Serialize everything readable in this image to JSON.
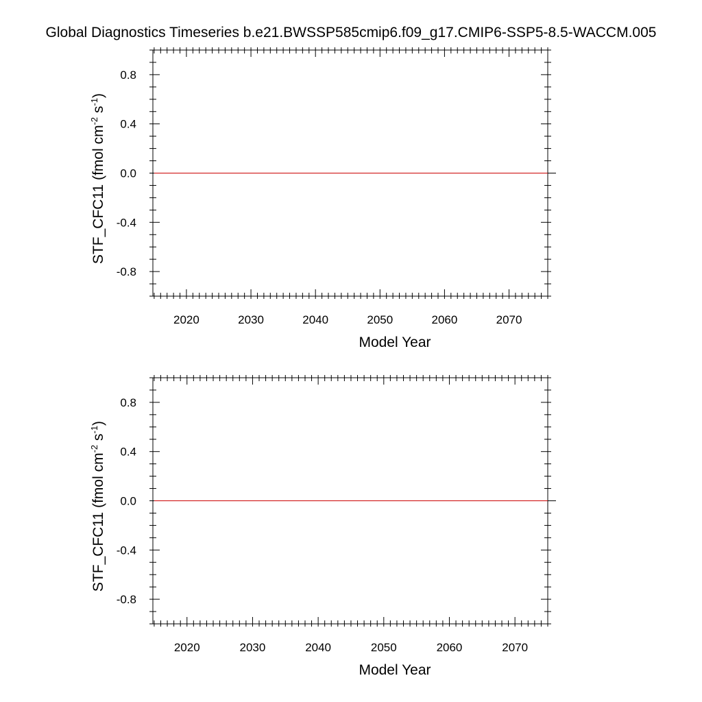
{
  "title": "Global Diagnostics Timeseries b.e21.BWSSP585cmip6.f09_g17.CMIP6-SSP5-8.5-WACCM.005",
  "chart_data": [
    {
      "type": "line",
      "xlabel": "Model Year",
      "ylabel": {
        "base": "STF_CFC11 (fmol cm",
        "exp1": "-2",
        "mid": " s",
        "exp2": "-1",
        "end": ")"
      },
      "xlim": [
        2014.8,
        2076
      ],
      "ylim": [
        -1.0,
        1.0
      ],
      "x_ticks": [
        2020,
        2030,
        2040,
        2050,
        2060,
        2070
      ],
      "y_ticks": [
        0.8,
        0.4,
        0.0,
        -0.4,
        -0.8
      ],
      "y_tick_labels": [
        "0.8",
        "0.4",
        "0.0",
        "-0.4",
        "-0.8"
      ],
      "reference_line": 0.0,
      "series": [
        {
          "color": "#cc0000",
          "x": [
            2015,
            2076
          ],
          "y": [
            0.0,
            0.0
          ]
        }
      ]
    },
    {
      "type": "line",
      "xlabel": "Model Year",
      "ylabel": {
        "base": "STF_CFC11 (fmol cm",
        "exp1": "-2",
        "mid": " s",
        "exp2": "-1",
        "end": ")"
      },
      "xlim": [
        2014.8,
        2075
      ],
      "ylim": [
        -1.0,
        1.0
      ],
      "x_ticks": [
        2020,
        2030,
        2040,
        2050,
        2060,
        2070
      ],
      "y_ticks": [
        0.8,
        0.4,
        0.0,
        -0.4,
        -0.8
      ],
      "y_tick_labels": [
        "0.8",
        "0.4",
        "0.0",
        "-0.4",
        "-0.8"
      ],
      "reference_line": 0.0,
      "series": [
        {
          "color": "#cc0000",
          "x": [
            2015,
            2075
          ],
          "y": [
            0.0,
            0.0
          ]
        }
      ]
    }
  ]
}
